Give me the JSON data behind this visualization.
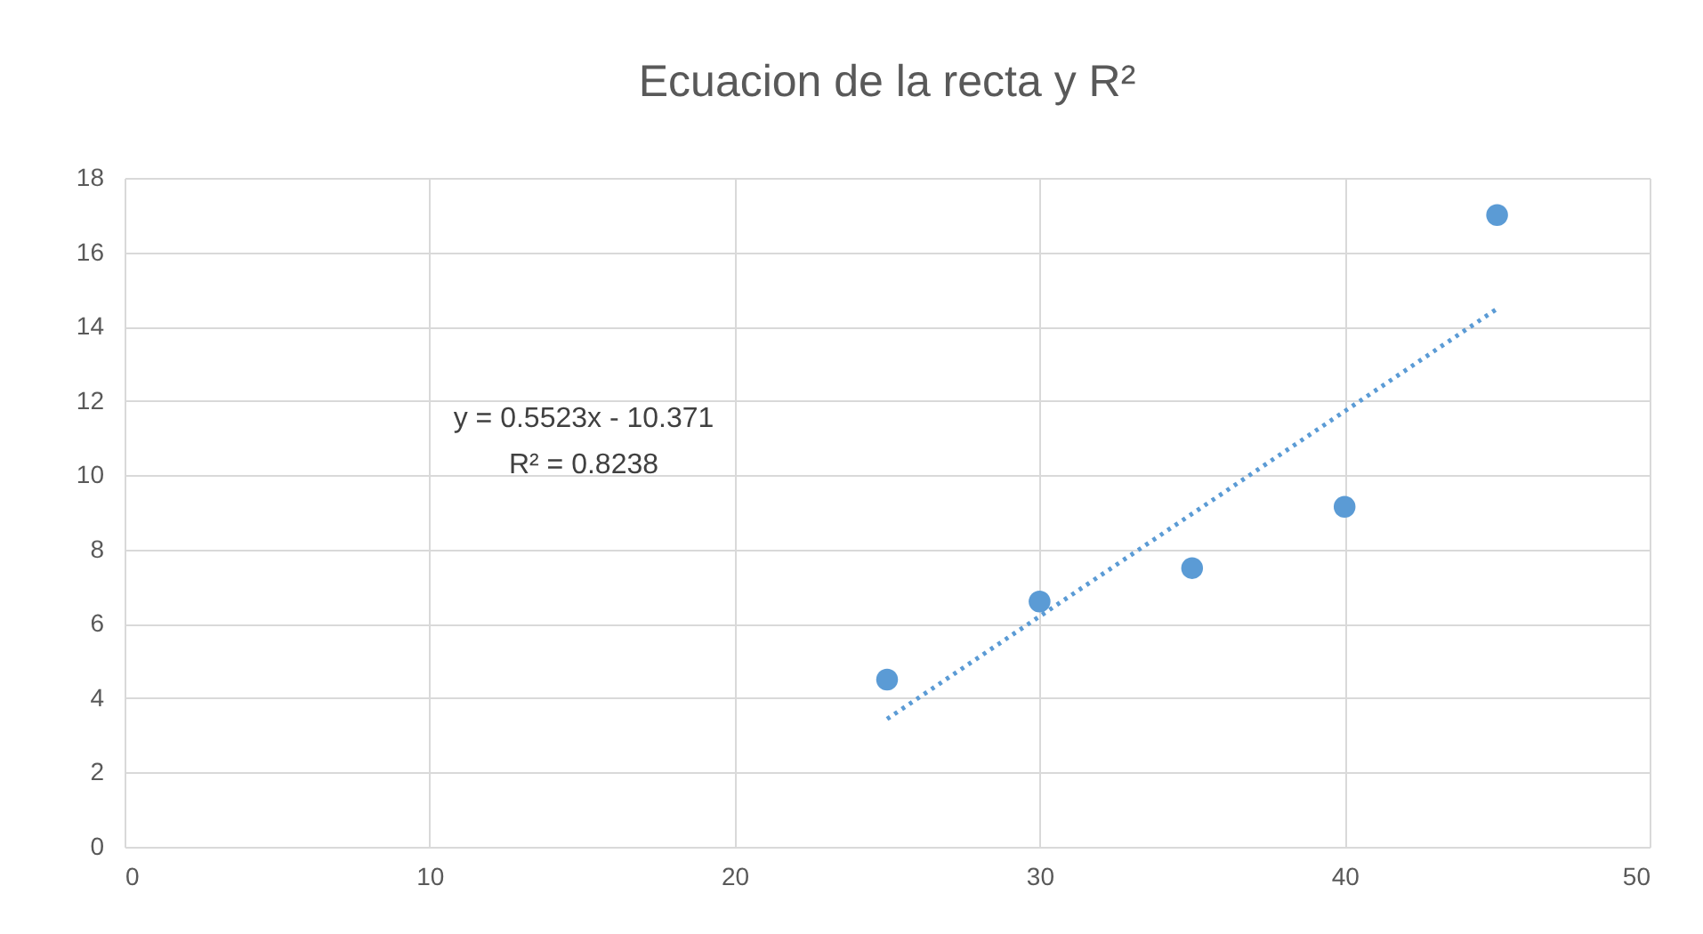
{
  "chart_data": {
    "type": "scatter",
    "title": "Ecuacion de la recta y R²",
    "series": [
      {
        "color": "#5b9bd5",
        "x": [
          25,
          30,
          35,
          40,
          45
        ],
        "values": [
          4.5,
          6.6,
          7.5,
          9.15,
          17
        ],
        "marker": "circle"
      },
      {
        "type": "line",
        "color": "#5b9bd5",
        "x": [
          25,
          45
        ],
        "values": [
          3.44,
          14.48
        ],
        "line_style": "dotted",
        "marker": "none"
      }
    ],
    "annotations": [
      "y = 0.5523x - 10.371",
      "R² = 0.8238"
    ],
    "xlim": [
      0,
      50
    ],
    "xticks": [
      0,
      10,
      20,
      30,
      40,
      50
    ],
    "ylim": [
      0,
      18
    ],
    "yticks": [
      0,
      2,
      4,
      6,
      8,
      10,
      12,
      14,
      16,
      18
    ],
    "grid": true
  }
}
